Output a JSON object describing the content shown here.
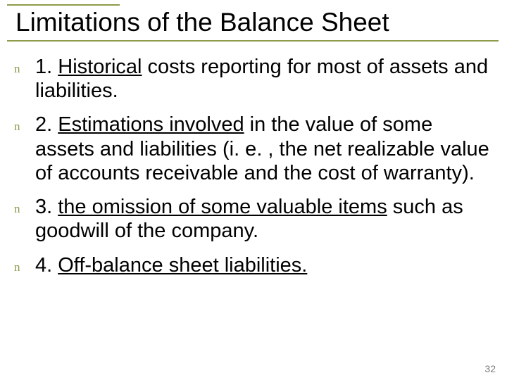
{
  "colors": {
    "rule": "#8f9a4a",
    "title_text": "#000000",
    "bullet": "#8f9a4a",
    "body_text": "#000000",
    "pagenum": "#7a7a7a",
    "background": "#ffffff"
  },
  "typography": {
    "title_font": "Arial",
    "title_size_pt": 28,
    "body_font": "Comic Sans MS",
    "body_size_pt": 22,
    "bullet_glyph": "n",
    "bullet_size_pt": 13,
    "pagenum_size_pt": 11
  },
  "title": "Limitations of the Balance Sheet",
  "items": [
    {
      "prefix": "1. ",
      "underlined": "Historical",
      "rest": "  costs reporting for most of assets and liabilities."
    },
    {
      "prefix": "2. ",
      "underlined": "Estimations involved",
      "rest": " in the value of some assets and liabilities (i. e. , the net realizable value of accounts receivable and the cost of warranty)."
    },
    {
      "prefix": "3. ",
      "underlined": "the omission of some valuable items",
      "rest": " such as goodwill of the company."
    },
    {
      "prefix": "4. ",
      "underlined": "Off-balance sheet liabilities.",
      "rest": ""
    }
  ],
  "page_number": "32"
}
